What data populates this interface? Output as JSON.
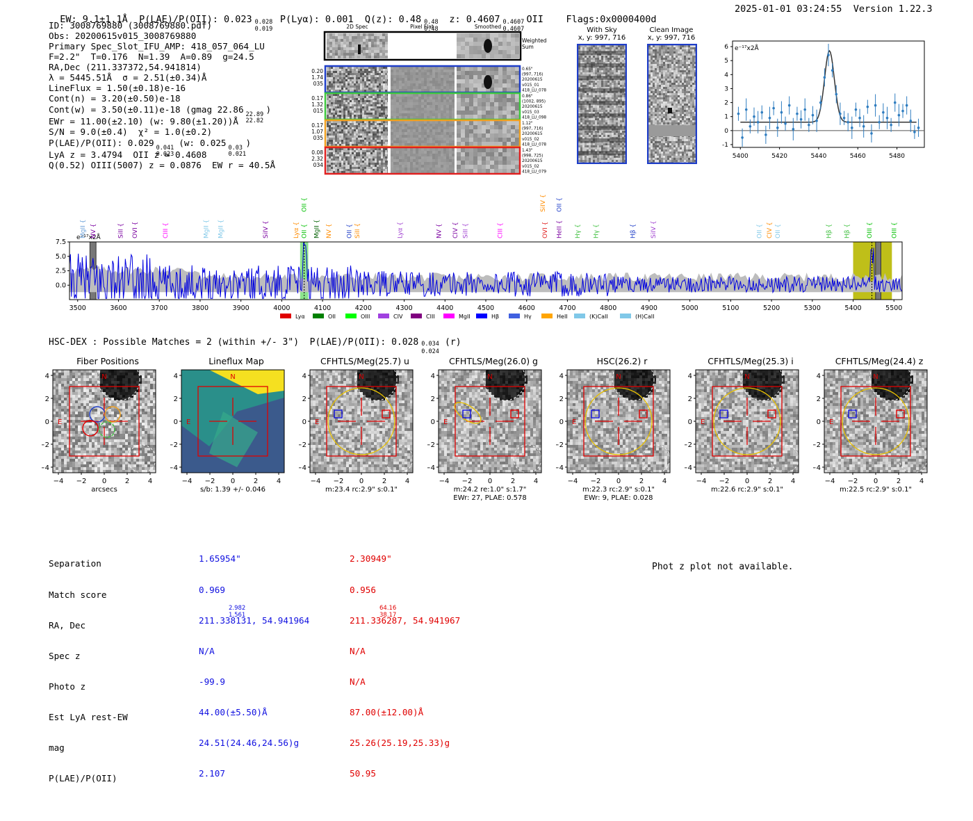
{
  "header": {
    "ew": "EW: 9.1±1.1Å",
    "plae": "P(LAE)/P(OII): 0.023",
    "plae_hi": "0.028",
    "plae_lo": "0.019",
    "plya": "P(Lyα): 0.001",
    "qz": "Q(z): 0.48",
    "qz_hi": "0.48",
    "qz_lo": "0.48",
    "z": "z: 0.4607",
    "z_hi": "0.4607",
    "z_lo": "0.4607",
    "z_line": "OII",
    "flags": "Flags:0x0000400d",
    "timestamp": "2025-01-01 03:24:55",
    "version": "Version 1.22.3"
  },
  "info": {
    "id": "ID: 3008769880 (3008769880.pdf)",
    "obs": "Obs: 20200615v015_3008769880",
    "primary": "Primary Spec_Slot_IFU_AMP: 418_057_064_LU",
    "f": "F=2.2\"  T=0.176  N=1.39  A=0.89  g=24.5",
    "radec": "RA,Dec (211.337372,54.941814)",
    "lambda": "λ = 5445.51Å  σ = 2.51(±0.34)Å",
    "lineflux": "LineFlux = 1.50(±0.18)e-16",
    "contn": "Cont(n) = 3.20(±0.50)e-18",
    "contw": "Cont(w) = 3.50(±0.11)e-18 (gmag 22.86",
    "contw_hi": "22.89",
    "contw_lo": "22.82",
    "contw_end": ")",
    "ewr": "EWr = 11.00(±2.10) (w: 9.80(±1.20))Å",
    "sn": "S/N = 9.0(±0.4)  χ² = 1.0(±0.2)",
    "plae": "P(LAE)/P(OII): 0.029",
    "plae_hi": "0.041",
    "plae_lo": "0.023",
    "plae_w": " (w: 0.025",
    "plae_w_hi": "0.03",
    "plae_w_lo": "0.021",
    "plae_end": ")",
    "lyaz": "LyA z = 3.4794  OII z = 0.4608",
    "qline": "Q(0.52) OIII(5007) z = 0.0876  EW r = 40.5Å"
  },
  "spec2d": {
    "col_titles": [
      "2D Spec",
      "Pixel Flat",
      "Smoothed"
    ],
    "weighted_label": "Weighted\nSum",
    "rows": [
      {
        "left": [
          "0.20",
          "1.74",
          "035"
        ],
        "right": [
          "0.65\"",
          "(997, 716)",
          "20200615",
          "v015_01",
          "418_LU_078"
        ],
        "color": "#1f3ec8"
      },
      {
        "left": [
          "0.17",
          "1.32",
          "015"
        ],
        "right": [
          "0.86\"",
          "(1002, 895)",
          "20200615",
          "v015_03",
          "418_LU_098"
        ],
        "color": "#3ec83e"
      },
      {
        "left": [
          "0.17",
          "1.07",
          "035"
        ],
        "right": [
          "1.12\"",
          "(997, 716)",
          "20200615",
          "v015_02",
          "418_LU_078"
        ],
        "color": "#f0a020"
      },
      {
        "left": [
          "0.08",
          "2.32",
          "034"
        ],
        "right": [
          "1.43\"",
          "(998, 725)",
          "20200615",
          "v015_02",
          "418_LU_079"
        ],
        "color": "#e02020"
      }
    ]
  },
  "sky": {
    "with_sky_title": "With Sky",
    "with_sky_xy": "x, y: 997, 716",
    "clean_title": "Clean Image",
    "clean_xy": "x, y: 997, 716"
  },
  "chart_data": [
    {
      "type": "scatter",
      "title": "e⁻¹⁷x2Å",
      "xlim": [
        5396,
        5494
      ],
      "ylim": [
        -1.2,
        6.4
      ],
      "xticks": [
        5400,
        5420,
        5440,
        5460,
        5480
      ],
      "yticks": [
        -1,
        0,
        1,
        2,
        3,
        4,
        5,
        6
      ],
      "points_x": [
        5399,
        5401,
        5403,
        5405,
        5407,
        5409,
        5411,
        5413,
        5415,
        5417,
        5419,
        5421,
        5423,
        5425,
        5427,
        5429,
        5431,
        5433,
        5435,
        5437,
        5439,
        5441,
        5443,
        5445,
        5447,
        5449,
        5451,
        5453,
        5455,
        5457,
        5459,
        5461,
        5463,
        5465,
        5467,
        5469,
        5471,
        5473,
        5475,
        5477,
        5479,
        5481,
        5483,
        5485,
        5487,
        5489,
        5491
      ],
      "points_y": [
        1.2,
        -0.5,
        1.5,
        0.3,
        1.0,
        0.6,
        1.3,
        -0.3,
        0.9,
        1.6,
        0.2,
        1.3,
        0.5,
        1.8,
        0.1,
        1.2,
        0.8,
        1.5,
        0.4,
        1.1,
        0.7,
        2.0,
        3.8,
        5.4,
        4.3,
        2.6,
        1.2,
        0.9,
        0.6,
        0.2,
        1.5,
        0.9,
        0.3,
        1.7,
        -0.2,
        1.8,
        0.6,
        1.3,
        0.9,
        0.4,
        2.0,
        1.1,
        1.4,
        1.8,
        0.7,
        -0.1,
        0.2
      ],
      "fit_peak": 5445.5,
      "fit_sigma": 2.51,
      "fit_amp": 5.1,
      "fit_base": 0.6
    },
    {
      "type": "line",
      "ylabel": "e⁻¹⁷x2Å",
      "xlim": [
        3480,
        5520
      ],
      "ylim": [
        -2.5,
        7.5
      ],
      "xticks": [
        3500,
        3600,
        3700,
        3800,
        3900,
        4000,
        4100,
        4200,
        4300,
        4400,
        4500,
        4600,
        4700,
        4800,
        4900,
        5000,
        5100,
        5200,
        5300,
        5400,
        5500
      ],
      "yticks": [
        0.0,
        2.5,
        5.0,
        7.5
      ],
      "highlight_green": [
        4045,
        4065
      ],
      "highlight_yellow": [
        5400,
        5495
      ],
      "highlight_gray": [
        [
          3530,
          3545
        ],
        [
          5455,
          5468
        ]
      ],
      "dotted_lines": [
        4055,
        5446
      ],
      "line_markers": [
        {
          "label": "MgII",
          "x": 3512,
          "color": "#6aa0d8",
          "row": 0
        },
        {
          "label": "NV",
          "x": 3538,
          "color": "#7a00a0",
          "row": 0
        },
        {
          "label": "SiII",
          "x": 3605,
          "color": "#7a00a0",
          "row": 0
        },
        {
          "label": "OVI",
          "x": 3640,
          "color": "#7a00a0",
          "row": 0
        },
        {
          "label": "CIII",
          "x": 3715,
          "color": "#ff00ff",
          "row": 0
        },
        {
          "label": "MgII",
          "x": 3815,
          "color": "#80c8e8",
          "row": 0
        },
        {
          "label": "MgII",
          "x": 3850,
          "color": "#80c8e8",
          "row": 0
        },
        {
          "label": "SiIV",
          "x": 3960,
          "color": "#7a00a0",
          "row": 0
        },
        {
          "label": "Lyα",
          "x": 4035,
          "color": "#ff8c00",
          "row": 0
        },
        {
          "label": "OII",
          "x": 4055,
          "color": "#00c000",
          "row": 0
        },
        {
          "label": "OII",
          "x": 4055,
          "color": "#00c000",
          "row": 1
        },
        {
          "label": "MgII",
          "x": 4085,
          "color": "#006000",
          "row": 0
        },
        {
          "label": "NV",
          "x": 4115,
          "color": "#ff8c00",
          "row": 0
        },
        {
          "label": "OII",
          "x": 4165,
          "color": "#1f3ec8",
          "row": 0
        },
        {
          "label": "SiII",
          "x": 4185,
          "color": "#ff8c00",
          "row": 0
        },
        {
          "label": "Lyα",
          "x": 4290,
          "color": "#a040d0",
          "row": 0
        },
        {
          "label": "NV",
          "x": 4385,
          "color": "#7a00a0",
          "row": 0
        },
        {
          "label": "CIV",
          "x": 4425,
          "color": "#7a00a0",
          "row": 0
        },
        {
          "label": "SiII",
          "x": 4450,
          "color": "#a040d0",
          "row": 0
        },
        {
          "label": "CIII",
          "x": 4535,
          "color": "#ff00ff",
          "row": 0
        },
        {
          "label": "SiIV",
          "x": 4640,
          "color": "#ff8c00",
          "row": 1
        },
        {
          "label": "OII",
          "x": 4680,
          "color": "#1f3ec8",
          "row": 1
        },
        {
          "label": "OVI",
          "x": 4645,
          "color": "#e02020",
          "row": 0
        },
        {
          "label": "HeII",
          "x": 4680,
          "color": "#7a00a0",
          "row": 0
        },
        {
          "label": "Hγ",
          "x": 4725,
          "color": "#40c040",
          "row": 0
        },
        {
          "label": "Hγ",
          "x": 4770,
          "color": "#40c040",
          "row": 0
        },
        {
          "label": "Hβ",
          "x": 4860,
          "color": "#1f3ec8",
          "row": 0
        },
        {
          "label": "SiIV",
          "x": 4910,
          "color": "#a040d0",
          "row": 0
        },
        {
          "label": "OII",
          "x": 5170,
          "color": "#80c8e8",
          "row": 0
        },
        {
          "label": "CIV",
          "x": 5195,
          "color": "#ff8c00",
          "row": 0
        },
        {
          "label": "OII",
          "x": 5215,
          "color": "#80c8e8",
          "row": 0
        },
        {
          "label": "Hβ",
          "x": 5340,
          "color": "#40c040",
          "row": 0
        },
        {
          "label": "Hβ",
          "x": 5385,
          "color": "#40c040",
          "row": 0
        },
        {
          "label": "OIII",
          "x": 5440,
          "color": "#00c000",
          "row": 0
        },
        {
          "label": "OIII",
          "x": 5500,
          "color": "#00c000",
          "row": 0
        }
      ],
      "legend": [
        {
          "label": "Lyα",
          "color": "#e00000"
        },
        {
          "label": "OII",
          "color": "#008000"
        },
        {
          "label": "OIII",
          "color": "#00ff00"
        },
        {
          "label": "CIV",
          "color": "#a040e0"
        },
        {
          "label": "CIII",
          "color": "#800080"
        },
        {
          "label": "MgII",
          "color": "#ff00ff"
        },
        {
          "label": "Hβ",
          "color": "#0000ff"
        },
        {
          "label": "Hγ",
          "color": "#4060e0"
        },
        {
          "label": "HeII",
          "color": "#ffa500"
        },
        {
          "label": "(K)CaII",
          "color": "#80c8e8"
        },
        {
          "label": "(H)CaII",
          "color": "#80c8e8"
        }
      ]
    }
  ],
  "hsc": {
    "title": "HSC-DEX : Possible Matches = 2 (within +/- 3\")  P(LAE)/P(OII): 0.028",
    "title_hi": "0.034",
    "title_lo": "0.024",
    "title_end": "(r)"
  },
  "cutouts": [
    {
      "title": "Fiber Positions",
      "caption1": "arcsecs",
      "caption2": ""
    },
    {
      "title": "Lineflux Map",
      "caption1": "s/b: 1.39 +/- 0.046",
      "caption2": ""
    },
    {
      "title": "CFHTLS/Meg(25.7) u",
      "caption1": "m:23.4 rc:2.9\"  s:0.1\"",
      "caption2": ""
    },
    {
      "title": "CFHTLS/Meg(26.0) g",
      "caption1": "m:24.2  re:1.0\"  s:1.7\"",
      "caption2": "EWr: 27, PLAE: 0.578"
    },
    {
      "title": "HSC(26.2) r",
      "caption1": "m:22.3 rc:2.9\"  s:0.1\"",
      "caption2": "EWr: 9, PLAE: 0.028"
    },
    {
      "title": "CFHTLS/Meg(25.3) i",
      "caption1": "m:22.6 rc:2.9\"  s:0.1\"",
      "caption2": ""
    },
    {
      "title": "CFHTLS/Meg(24.4) z",
      "caption1": "m:22.5 rc:2.9\"  s:0.1\"",
      "caption2": ""
    }
  ],
  "axis_labels": {
    "n": "N",
    "e": "E",
    "ticks": [
      "4",
      "2",
      "0",
      "−2",
      "−4"
    ],
    "xticks": [
      "−4",
      "−2",
      "0",
      "2",
      "4"
    ]
  },
  "matches": {
    "labels": [
      "Separation",
      "Match score",
      "RA, Dec",
      "Spec z",
      "Photo z",
      "Est LyA rest-EW",
      "mag",
      "P(LAE)/P(OII)"
    ],
    "blue": [
      "1.65954\"",
      "0.969",
      "211.338131, 54.941964",
      "N/A",
      "-99.9",
      "44.00(±5.50)Å",
      "24.51(24.46,24.56)g",
      "2.107"
    ],
    "blue_plae_hi": "2.982",
    "blue_plae_lo": "1.561",
    "red": [
      "2.30949\"",
      "0.956",
      "211.336287, 54.941967",
      "N/A",
      "N/A",
      "87.00(±12.00)Å",
      "25.26(25.19,25.33)g",
      "50.95"
    ],
    "red_plae_hi": "64.16",
    "red_plae_lo": "38.17",
    "phot_z_note": "Phot z plot not available."
  }
}
